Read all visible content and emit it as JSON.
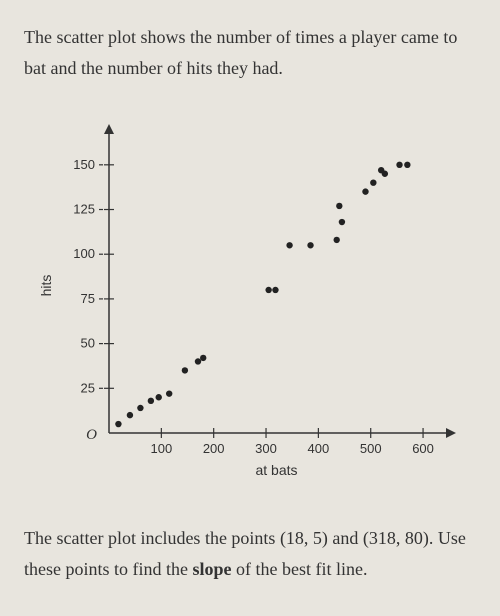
{
  "intro": "The scatter plot shows the number of times a player came to bat and the number of hits they had.",
  "outro_1": "The scatter plot includes the points (18, 5) and (318, 80). Use these points to find the ",
  "outro_bold": "slope",
  "outro_2": " of the best fit line.",
  "chart": {
    "type": "scatter",
    "xlabel": "at bats",
    "ylabel": "hits",
    "origin_label": "O",
    "xlim": [
      0,
      640
    ],
    "ylim": [
      0,
      165
    ],
    "xticks": [
      100,
      200,
      300,
      400,
      500,
      600
    ],
    "yticks": [
      25,
      50,
      75,
      100,
      125,
      150
    ],
    "tick_fontsize": 13,
    "label_fontsize": 14,
    "background_color": "#e8e5de",
    "axis_color": "#333333",
    "point_color": "#222222",
    "point_radius": 3.2,
    "points": [
      [
        18,
        5
      ],
      [
        40,
        10
      ],
      [
        60,
        14
      ],
      [
        80,
        18
      ],
      [
        95,
        20
      ],
      [
        115,
        22
      ],
      [
        145,
        35
      ],
      [
        170,
        40
      ],
      [
        180,
        42
      ],
      [
        305,
        80
      ],
      [
        318,
        80
      ],
      [
        345,
        105
      ],
      [
        385,
        105
      ],
      [
        435,
        108
      ],
      [
        440,
        127
      ],
      [
        445,
        118
      ],
      [
        490,
        135
      ],
      [
        505,
        140
      ],
      [
        520,
        147
      ],
      [
        527,
        145
      ],
      [
        555,
        150
      ],
      [
        570,
        150
      ]
    ]
  }
}
